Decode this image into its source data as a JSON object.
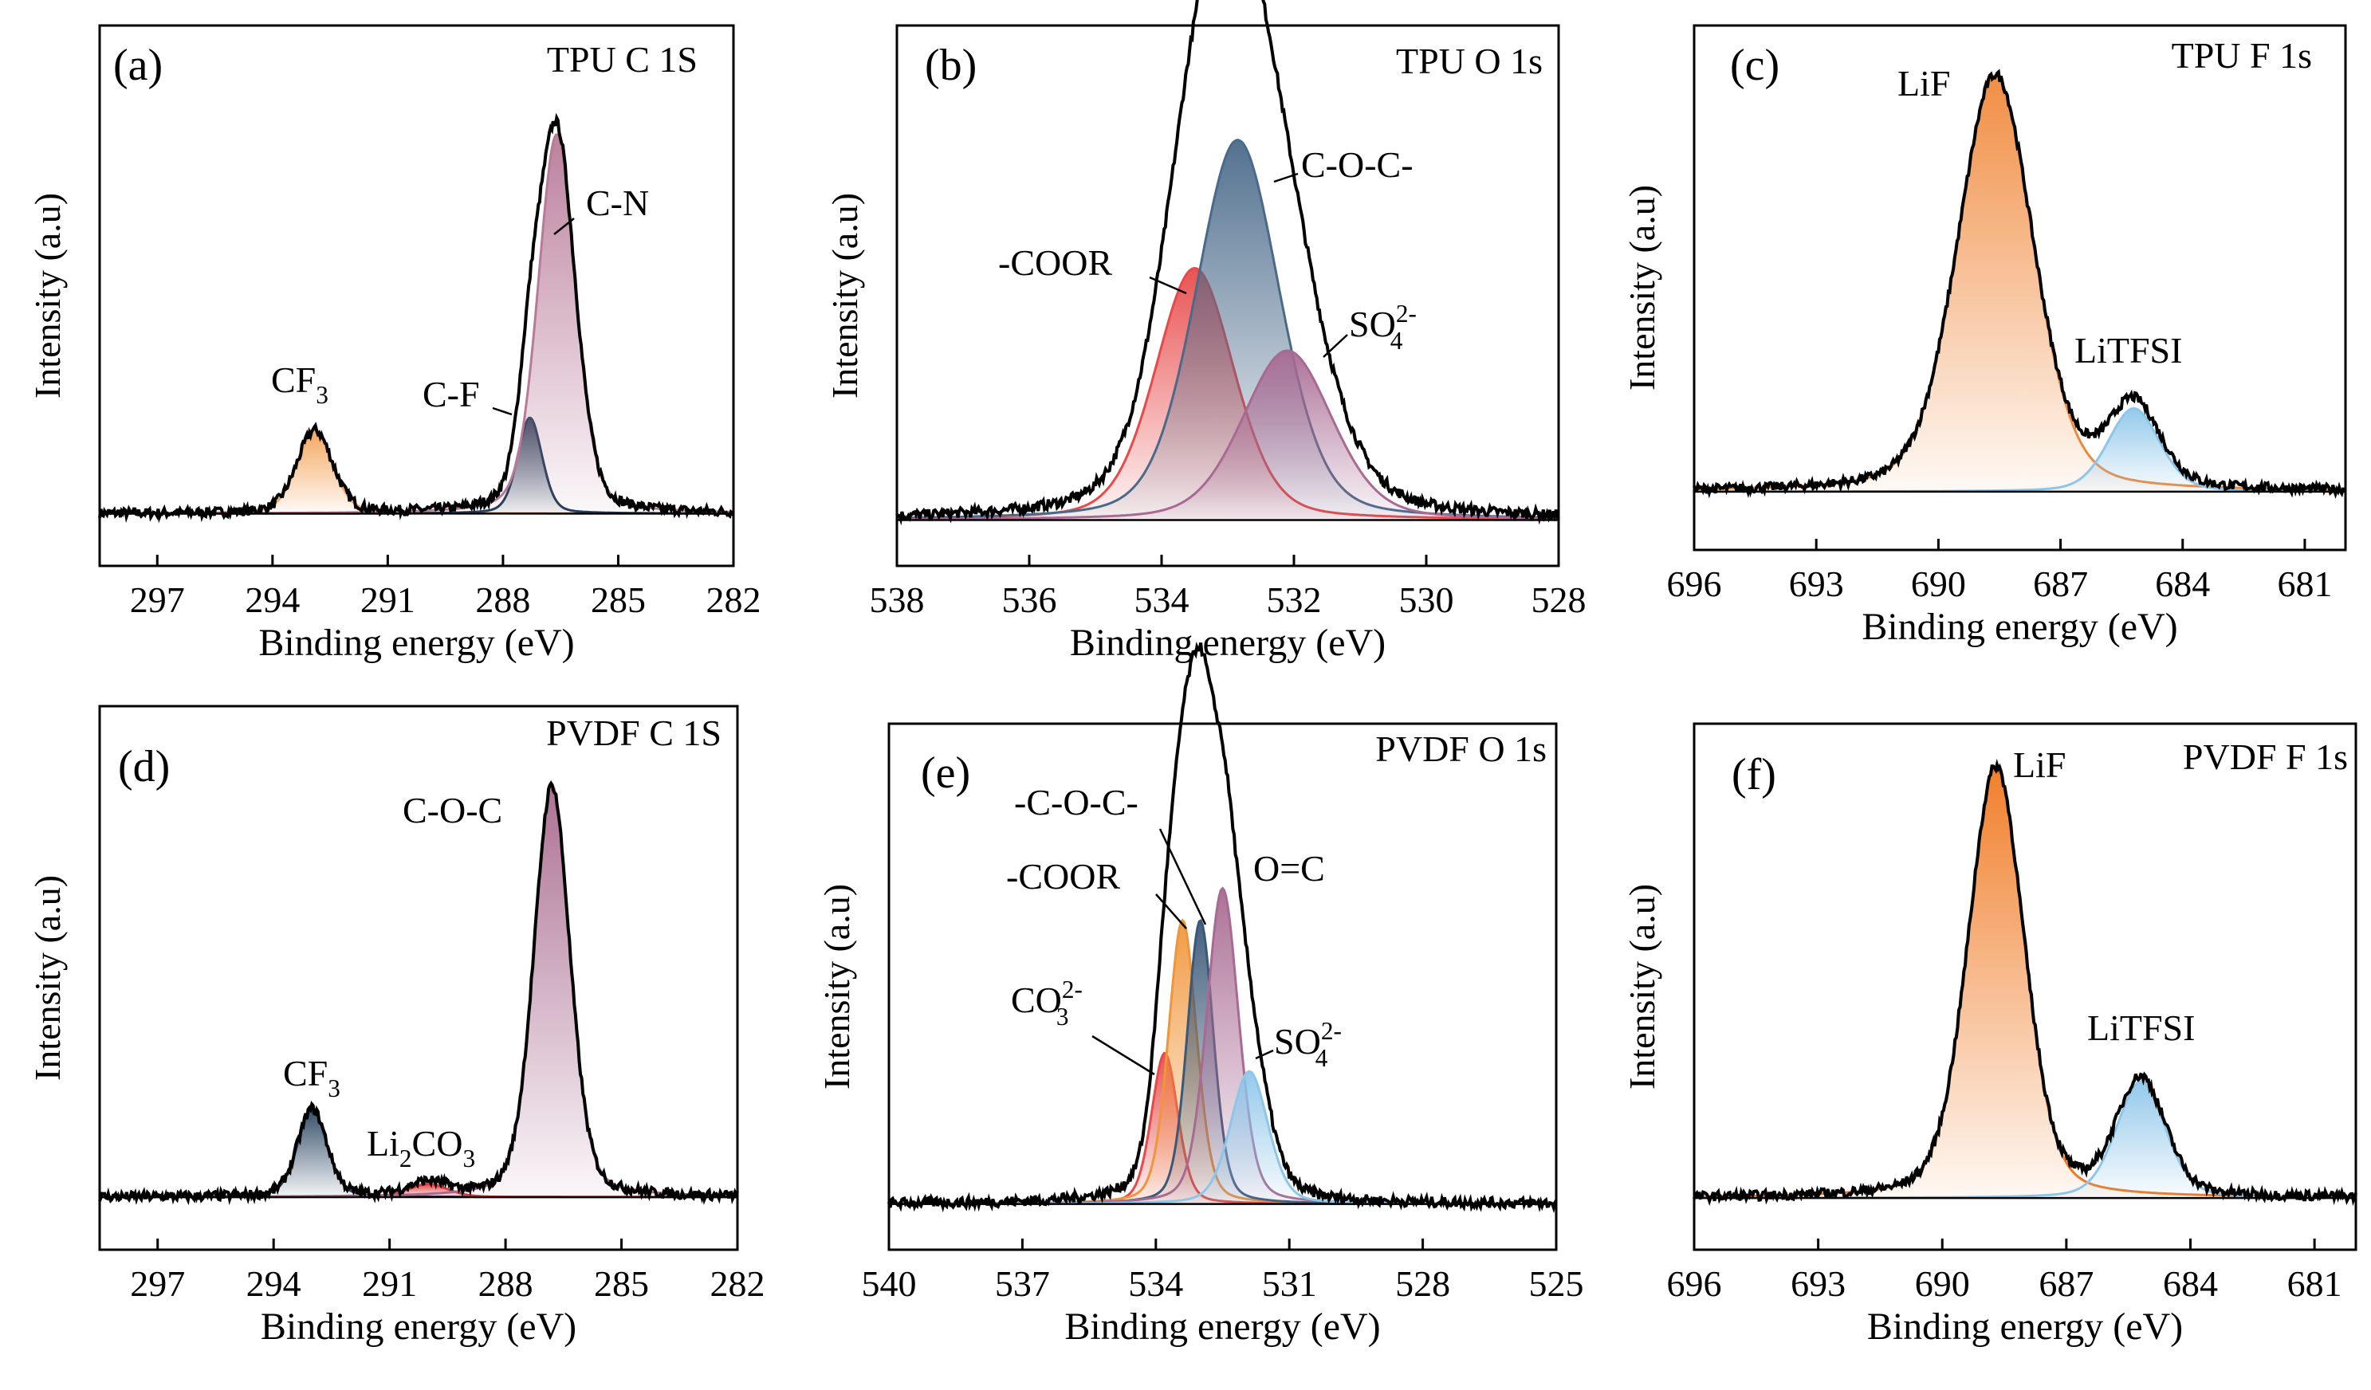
{
  "chart_data": [
    {
      "id": "a",
      "type": "line",
      "panel_label": "(a)",
      "title": "TPU C 1S",
      "xlabel": "Binding energy (eV)",
      "ylabel": "Intensity (a.u)",
      "xlim": [
        298.5,
        282
      ],
      "ylim": [
        -0.12,
        1.12
      ],
      "ticks": [
        "297",
        "294",
        "291",
        "288",
        "285",
        "282"
      ],
      "tick_values": [
        297,
        294,
        291,
        288,
        285,
        282
      ],
      "baseline": 0.0,
      "peaks": [
        {
          "name": "CF3",
          "center": 292.9,
          "height": 0.19,
          "fwhm": 1.1,
          "color": "#f3a35a"
        },
        {
          "name": "C-F",
          "center": 287.3,
          "height": 0.22,
          "fwhm": 0.75,
          "color": "#1f3b55"
        },
        {
          "name": "C-N",
          "center": 286.6,
          "height": 0.87,
          "fwhm": 1.15,
          "color": "#b87a98"
        }
      ],
      "annotations": [
        {
          "text": "CF",
          "sub": "3",
          "sup": ""
        },
        {
          "text": "C-F",
          "sub": "",
          "sup": ""
        },
        {
          "text": "C-N",
          "sub": "",
          "sup": ""
        }
      ]
    },
    {
      "id": "b",
      "type": "line",
      "panel_label": "(b)",
      "title": "TPU O 1s",
      "xlabel": "Binding energy (eV)",
      "ylabel": "Intensity (a.u)",
      "xlim": [
        538,
        528
      ],
      "ylim": [
        -0.1,
        1.08
      ],
      "ticks": [
        "538",
        "536",
        "534",
        "532",
        "530",
        "528"
      ],
      "tick_values": [
        538,
        536,
        534,
        532,
        530,
        528
      ],
      "baseline": 0.0,
      "peaks": [
        {
          "name": "-COOR",
          "center": 533.5,
          "height": 0.55,
          "fwhm": 1.4,
          "color": "#e84a4a"
        },
        {
          "name": "C-O-C-",
          "center": 532.85,
          "height": 0.83,
          "fwhm": 1.5,
          "color": "#4a6a8a"
        },
        {
          "name": "SO4 2-",
          "center": 532.1,
          "height": 0.37,
          "fwhm": 1.6,
          "color": "#a86a92"
        }
      ],
      "annotations": [
        {
          "text": "-COOR",
          "sub": "",
          "sup": ""
        },
        {
          "text": "C-O-C-",
          "sub": "",
          "sup": ""
        },
        {
          "text": "SO",
          "sub": "4",
          "sup": "2-"
        }
      ]
    },
    {
      "id": "c",
      "type": "line",
      "panel_label": "(c)",
      "title": "TPU F 1s",
      "xlabel": "Binding energy (eV)",
      "ylabel": "Intensity (a.u)",
      "xlim": [
        696,
        680
      ],
      "ylim": [
        -0.14,
        1.12
      ],
      "ticks": [
        "696",
        "693",
        "690",
        "687",
        "684",
        "681"
      ],
      "tick_values": [
        696,
        693,
        690,
        687,
        684,
        681
      ],
      "baseline": 0.0,
      "peaks": [
        {
          "name": "LiF",
          "center": 688.6,
          "height": 1.0,
          "fwhm": 2.2,
          "color": "#f0883a"
        },
        {
          "name": "LiTFSI",
          "center": 685.2,
          "height": 0.2,
          "fwhm": 1.5,
          "color": "#8ec6ea"
        }
      ],
      "annotations": [
        {
          "text": "LiF",
          "sub": "",
          "sup": ""
        },
        {
          "text": "LiTFSI",
          "sub": "",
          "sup": ""
        }
      ]
    },
    {
      "id": "d",
      "type": "line",
      "panel_label": "(d)",
      "title": "PVDF C 1S",
      "xlabel": "Binding energy (eV)",
      "ylabel": "Intensity (a.u)",
      "xlim": [
        298.5,
        282
      ],
      "ylim": [
        -0.12,
        1.12
      ],
      "ticks": [
        "297",
        "294",
        "291",
        "288",
        "285",
        "282"
      ],
      "tick_values": [
        297,
        294,
        291,
        288,
        285,
        282
      ],
      "baseline": 0.0,
      "peaks": [
        {
          "name": "CF3",
          "center": 293.0,
          "height": 0.2,
          "fwhm": 0.9,
          "color": "#2a4560"
        },
        {
          "name": "Li2CO3",
          "center": 290.0,
          "height": 0.03,
          "fwhm": 1.2,
          "color": "#e03a3a"
        },
        {
          "name": "C-O-C",
          "center": 286.8,
          "height": 0.94,
          "fwhm": 1.1,
          "color": "#a86a8e"
        }
      ],
      "annotations": [
        {
          "text": "CF",
          "sub": "3",
          "sup": ""
        },
        {
          "text": "Li",
          "sub": "2",
          "sup": "",
          "tail": "CO",
          "sub2": "3"
        },
        {
          "text": "C-O-C",
          "sub": "",
          "sup": ""
        }
      ]
    },
    {
      "id": "e",
      "type": "line",
      "panel_label": "(e)",
      "title": "PVDF O 1s",
      "xlabel": "Binding energy (eV)",
      "ylabel": "Intensity (a.u)",
      "xlim": [
        540,
        525
      ],
      "ylim": [
        -0.1,
        1.05
      ],
      "ticks": [
        "540",
        "537",
        "534",
        "531",
        "528",
        "525"
      ],
      "tick_values": [
        540,
        537,
        534,
        531,
        528,
        525
      ],
      "baseline": 0.0,
      "peaks": [
        {
          "name": "CO3 2-",
          "center": 533.8,
          "height": 0.33,
          "fwhm": 0.7,
          "color": "#e84a4a"
        },
        {
          "name": "-COOR",
          "center": 533.4,
          "height": 0.62,
          "fwhm": 0.75,
          "color": "#f0963a"
        },
        {
          "name": "-C-O-C-",
          "center": 533.0,
          "height": 0.62,
          "fwhm": 0.7,
          "color": "#3a5878"
        },
        {
          "name": "O=C",
          "center": 532.5,
          "height": 0.69,
          "fwhm": 0.85,
          "color": "#a86a92"
        },
        {
          "name": "SO4 2-",
          "center": 531.9,
          "height": 0.29,
          "fwhm": 1.0,
          "color": "#8ec6ea"
        }
      ],
      "annotations": [
        {
          "text": "-C-O-C-",
          "sub": "",
          "sup": ""
        },
        {
          "text": "-COOR",
          "sub": "",
          "sup": ""
        },
        {
          "text": "O=C",
          "sub": "",
          "sup": ""
        },
        {
          "text": "CO",
          "sub": "3",
          "sup": "2-"
        },
        {
          "text": "SO",
          "sub": "4",
          "sup": "2-"
        }
      ]
    },
    {
      "id": "f",
      "type": "line",
      "panel_label": "(f)",
      "title": "PVDF F 1s",
      "xlabel": "Binding energy (eV)",
      "ylabel": "Intensity (a.u)",
      "xlim": [
        696,
        680
      ],
      "ylim": [
        -0.12,
        1.1
      ],
      "ticks": [
        "696",
        "693",
        "690",
        "687",
        "684",
        "681"
      ],
      "tick_values": [
        696,
        693,
        690,
        687,
        684,
        681
      ],
      "baseline": 0.0,
      "peaks": [
        {
          "name": "LiF",
          "center": 688.7,
          "height": 1.0,
          "fwhm": 1.6,
          "color": "#f07820"
        },
        {
          "name": "LiTFSI",
          "center": 685.2,
          "height": 0.27,
          "fwhm": 1.4,
          "color": "#8ec6ea"
        }
      ],
      "annotations": [
        {
          "text": "LiF",
          "sub": "",
          "sup": ""
        },
        {
          "text": "LiTFSI",
          "sub": "",
          "sup": ""
        }
      ]
    }
  ]
}
